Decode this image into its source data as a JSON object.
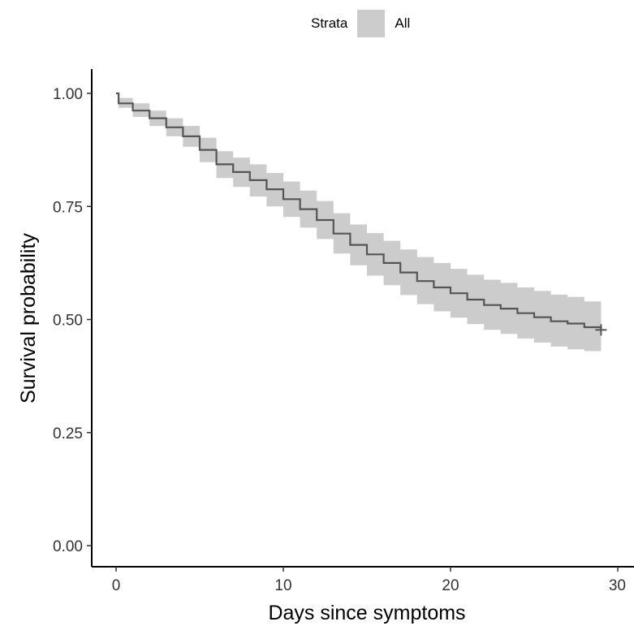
{
  "legend": {
    "title": "Strata",
    "label": "All",
    "fill": "#cccccc"
  },
  "chart_data": {
    "type": "line",
    "xlabel": "Days since symptoms",
    "ylabel": "Survival probability",
    "xlim": [
      0,
      30
    ],
    "ylim": [
      0,
      1
    ],
    "x_ticks": [
      0,
      10,
      20,
      30
    ],
    "x_tick_labels": [
      "0",
      "10",
      "20",
      "30"
    ],
    "y_ticks": [
      0,
      0.25,
      0.5,
      0.75,
      1
    ],
    "y_tick_labels": [
      "0.00",
      "0.25",
      "0.50",
      "0.75",
      "1.00"
    ],
    "grid": false,
    "legend_position": "top",
    "line_color": "#555555",
    "band_color": "#cccccc",
    "series": [
      {
        "name": "All",
        "x": [
          0,
          0.15,
          1,
          2,
          3,
          4,
          5,
          6,
          7,
          8,
          9,
          10,
          11,
          12,
          13,
          14,
          15,
          16,
          17,
          18,
          19,
          20,
          21,
          22,
          23,
          24,
          25,
          26,
          27,
          28,
          29
        ],
        "y": [
          1.0,
          0.978,
          0.962,
          0.945,
          0.925,
          0.905,
          0.875,
          0.843,
          0.826,
          0.808,
          0.788,
          0.766,
          0.744,
          0.72,
          0.69,
          0.665,
          0.644,
          0.625,
          0.604,
          0.585,
          0.571,
          0.558,
          0.544,
          0.532,
          0.524,
          0.514,
          0.505,
          0.496,
          0.491,
          0.483,
          0.477
        ],
        "lower": [
          1.0,
          0.968,
          0.948,
          0.928,
          0.905,
          0.882,
          0.848,
          0.813,
          0.793,
          0.772,
          0.75,
          0.727,
          0.703,
          0.678,
          0.646,
          0.62,
          0.597,
          0.576,
          0.554,
          0.534,
          0.518,
          0.504,
          0.49,
          0.477,
          0.468,
          0.458,
          0.449,
          0.44,
          0.434,
          0.43,
          0.427
        ],
        "upper": [
          1.0,
          0.99,
          0.978,
          0.962,
          0.945,
          0.928,
          0.902,
          0.872,
          0.858,
          0.843,
          0.824,
          0.805,
          0.785,
          0.762,
          0.735,
          0.71,
          0.691,
          0.674,
          0.655,
          0.638,
          0.625,
          0.612,
          0.599,
          0.588,
          0.581,
          0.571,
          0.563,
          0.555,
          0.55,
          0.54,
          0.527
        ],
        "censor": [
          {
            "x": 29,
            "y": 0.477
          }
        ]
      }
    ]
  }
}
